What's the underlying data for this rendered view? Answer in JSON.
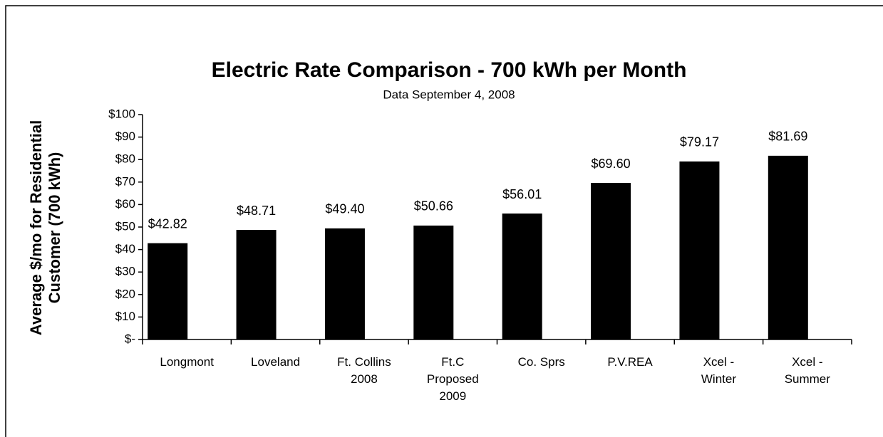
{
  "chart_data": {
    "type": "bar",
    "title": "Electric Rate Comparison - 700 kWh per Month",
    "subtitle": "Data September 4, 2008",
    "y_label": "Average $/mo for Residential\nCustomer (700 kWh)",
    "categories": [
      "Longmont",
      "Loveland",
      "Ft. Collins\n2008",
      "Ft.C\nProposed\n2009",
      "Co. Sprs",
      "P.V.REA",
      "Xcel -\nWinter",
      "Xcel -\nSummer"
    ],
    "values": [
      42.82,
      48.71,
      49.4,
      50.66,
      56.01,
      69.6,
      79.17,
      81.69
    ],
    "value_labels": [
      "$42.82",
      "$48.71",
      "$49.40",
      "$50.66",
      "$56.01",
      "$69.60",
      "$79.17",
      "$81.69"
    ],
    "color": "#000000",
    "ylim": [
      0,
      100
    ],
    "yticks": [
      {
        "value": 0,
        "label": "$-"
      },
      {
        "value": 10,
        "label": "$10"
      },
      {
        "value": 20,
        "label": "$20"
      },
      {
        "value": 30,
        "label": "$30"
      },
      {
        "value": 40,
        "label": "$40"
      },
      {
        "value": 50,
        "label": "$50"
      },
      {
        "value": 60,
        "label": "$60"
      },
      {
        "value": 70,
        "label": "$70"
      },
      {
        "value": 80,
        "label": "$80"
      },
      {
        "value": 90,
        "label": "$90"
      },
      {
        "value": 100,
        "label": "$100"
      }
    ],
    "grid": false
  }
}
